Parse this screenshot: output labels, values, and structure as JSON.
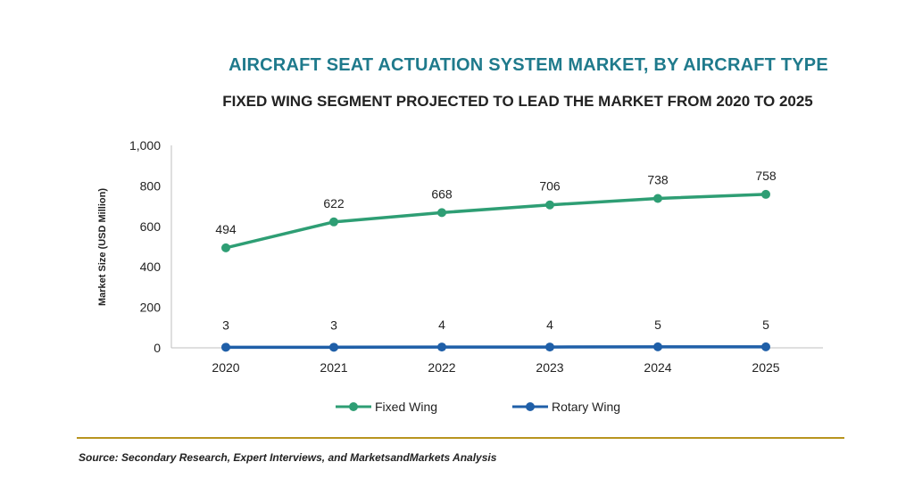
{
  "header": {
    "title": "AIRCRAFT SEAT ACTUATION SYSTEM MARKET, BY AIRCRAFT TYPE",
    "subtitle": "FIXED WING SEGMENT PROJECTED TO LEAD THE MARKET FROM 2020 TO 2025"
  },
  "footer": {
    "source": "Source: Secondary Research, Expert Interviews, and MarketsandMarkets Analysis"
  },
  "chart_data": {
    "type": "line",
    "title": "AIRCRAFT SEAT ACTUATION SYSTEM MARKET, BY AIRCRAFT TYPE",
    "subtitle": "FIXED WING SEGMENT PROJECTED TO LEAD THE MARKET FROM 2020 TO 2025",
    "xlabel": "",
    "ylabel": "Market Size (USD Million)",
    "categories": [
      "2020",
      "2021",
      "2022",
      "2023",
      "2024",
      "2025"
    ],
    "ylim": [
      0,
      1000
    ],
    "yticks": [
      "0",
      "200",
      "400",
      "600",
      "800",
      "1,000"
    ],
    "grid": false,
    "legend": "bottom",
    "series": [
      {
        "name": "Fixed Wing",
        "values": [
          494,
          622,
          668,
          706,
          738,
          758
        ],
        "color": "#2e9e74"
      },
      {
        "name": "Rotary Wing",
        "values": [
          3,
          3,
          4,
          4,
          5,
          5
        ],
        "color": "#1f5fa8"
      }
    ]
  }
}
